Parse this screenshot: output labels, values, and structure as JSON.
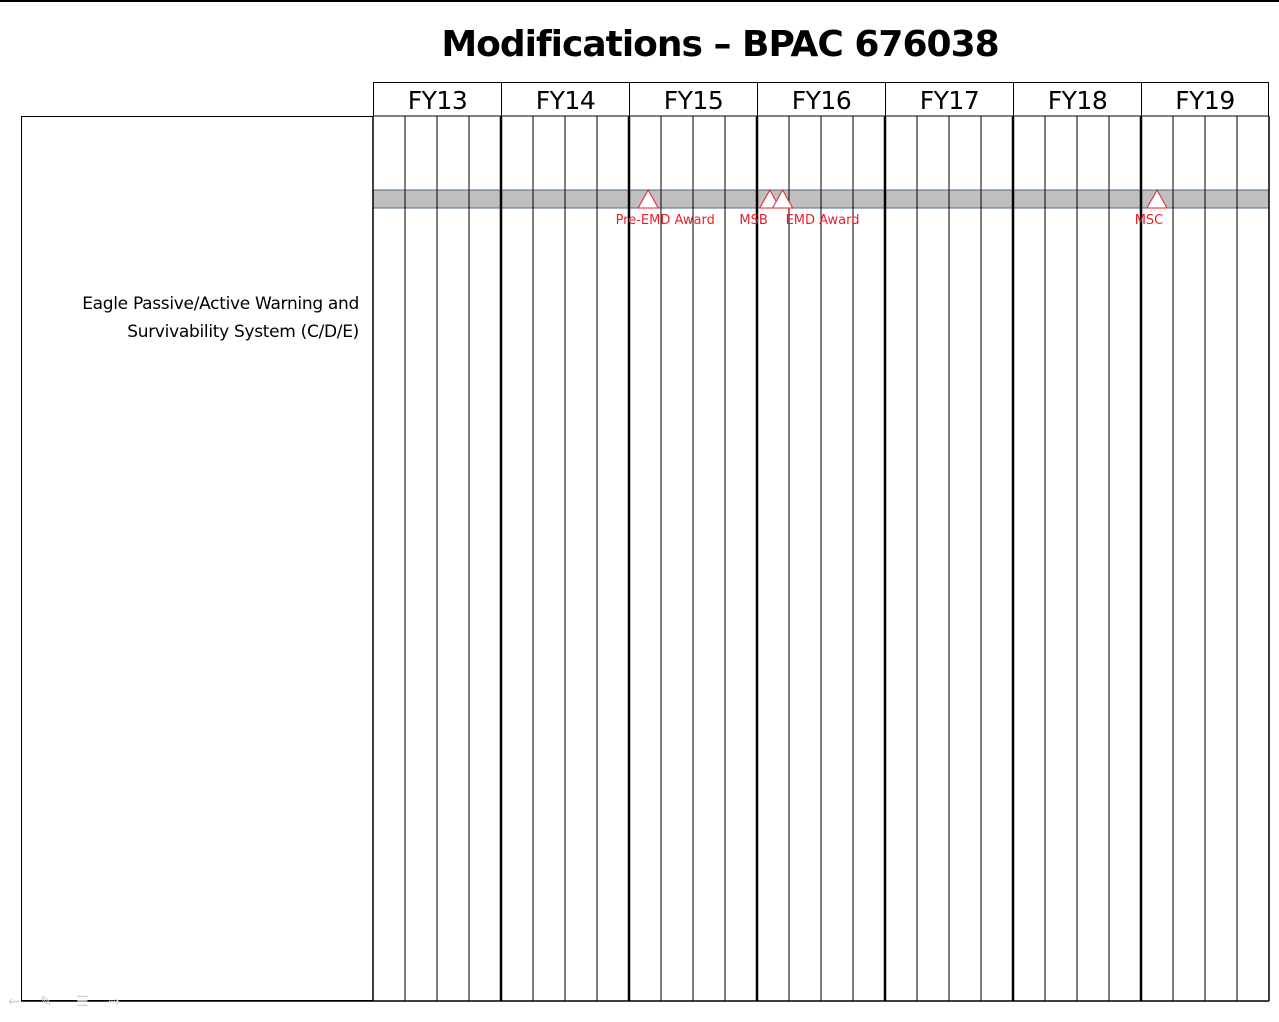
{
  "title": "Modifications – BPAC 676038",
  "fiscal_years": [
    "FY13",
    "FY14",
    "FY15",
    "FY16",
    "FY17",
    "FY18",
    "FY19"
  ],
  "quarters_per_year": 4,
  "rows": [
    {
      "label_line1": "Eagle Passive/Active Warning and",
      "label_line2": "Survivability System (C/D/E)",
      "bar": {
        "start": "FY13 Q1",
        "end": "FY19 Q4",
        "color": "#bfbfbf",
        "edge_color": "#4f6b86"
      },
      "milestones": [
        {
          "label": "Pre-EMD Award",
          "position": 8.6
        },
        {
          "label": "MSB",
          "position": 12.4
        },
        {
          "label": "EMD Award",
          "position": 12.8
        },
        {
          "label": "MSC",
          "position": 24.5
        }
      ]
    }
  ],
  "colors": {
    "milestone": "#e8202a",
    "grid": "#000000",
    "bar": "#bfbfbf"
  },
  "icons": [
    "milestone-triangle-icon",
    "nav-back-icon",
    "nav-pen-icon",
    "nav-menu-icon",
    "nav-forward-icon"
  ]
}
